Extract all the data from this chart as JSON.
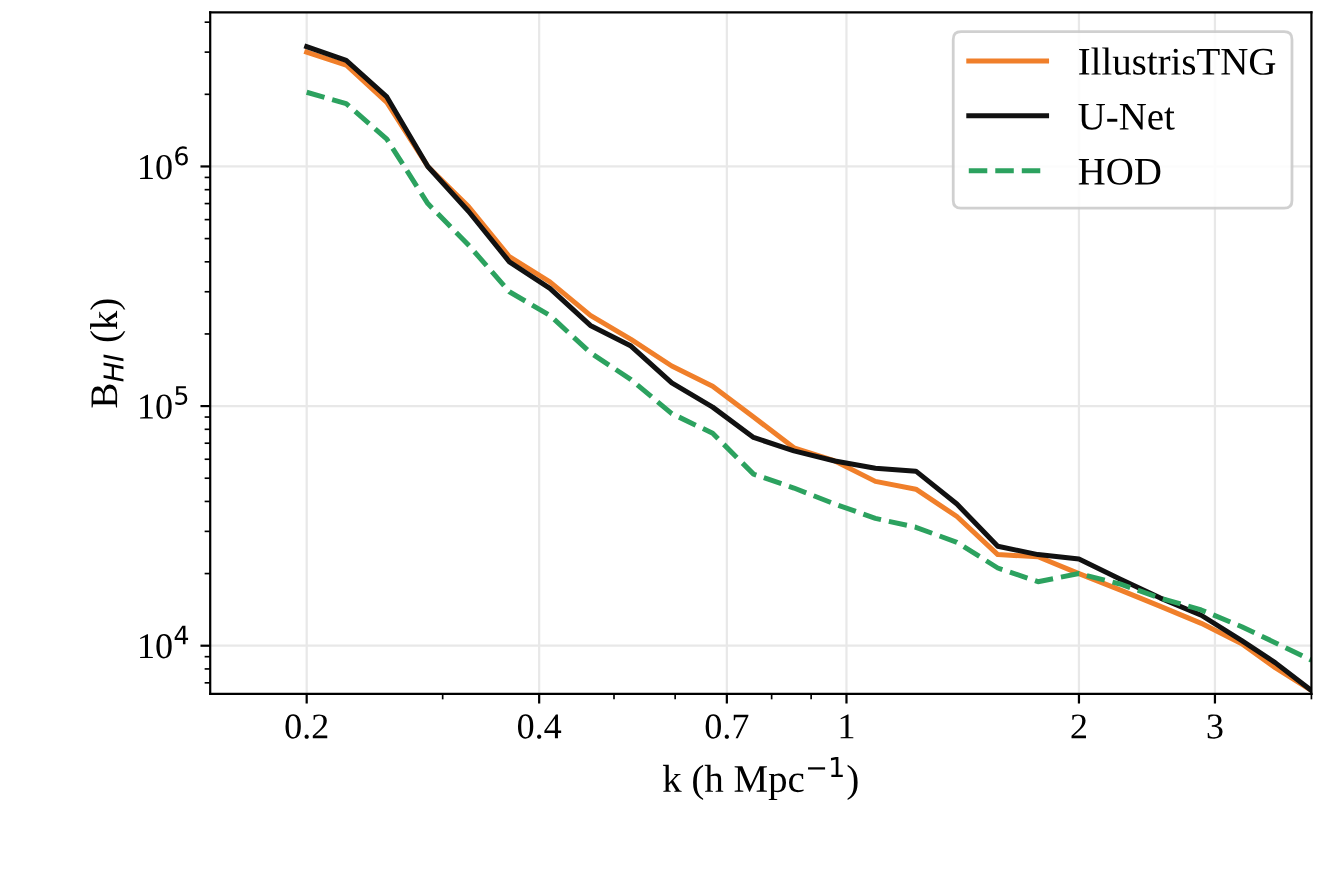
{
  "chart_data": {
    "type": "line",
    "xlabel": "k (h Mpc$^{−1}$)",
    "ylabel": "B$_{HI}$ (k)",
    "log": "xy",
    "grid": true,
    "legend": "top right",
    "xlim": [
      0.15,
      4.0
    ],
    "xticks": [
      0.2,
      0.4,
      0.7,
      1,
      2,
      3
    ],
    "ylim": [
      6300,
      4400000
    ],
    "yticks": [
      {
        "value": 10000,
        "label": "10$^{4}$"
      },
      {
        "value": 100000,
        "label": "10$^{5}$"
      },
      {
        "value": 1000000,
        "label": "10$^{6}$"
      }
    ],
    "x": [
      0.2,
      0.225,
      0.254,
      0.287,
      0.324,
      0.366,
      0.413,
      0.466,
      0.526,
      0.594,
      0.671,
      0.758,
      0.855,
      0.966,
      1.09,
      1.23,
      1.39,
      1.57,
      1.77,
      2.0,
      2.26,
      2.55,
      2.88,
      3.25,
      3.59,
      4.0
    ],
    "series": [
      {
        "name": "IllustrisTNG",
        "color": "#f07f2a",
        "line_style": "solid",
        "values": [
          3000000,
          2650000,
          1850000,
          1000000,
          680000,
          420000,
          330000,
          239000,
          190000,
          147000,
          121000,
          90000,
          67000,
          59000,
          48500,
          45000,
          34600,
          24000,
          23500,
          20000,
          17100,
          14600,
          12400,
          10200,
          8100,
          6500
        ]
      },
      {
        "name": "U-Net",
        "color": "#111111",
        "line_style": "solid",
        "values": [
          3160000,
          2770000,
          1950000,
          1000000,
          650000,
          400000,
          310000,
          217000,
          178000,
          125000,
          99000,
          74000,
          65000,
          59000,
          55000,
          53500,
          39000,
          26000,
          24000,
          23000,
          19000,
          15800,
          13400,
          10500,
          8500,
          6500
        ]
      },
      {
        "name": "HOD",
        "color": "#2ca25f",
        "line_style": "dashed",
        "values": [
          2040000,
          1830000,
          1300000,
          700000,
          470000,
          300000,
          239000,
          167000,
          129000,
          93000,
          77000,
          52000,
          45500,
          39000,
          34000,
          31200,
          27000,
          21100,
          18500,
          20000,
          18100,
          15800,
          14100,
          12000,
          10300,
          8700
        ]
      }
    ]
  }
}
